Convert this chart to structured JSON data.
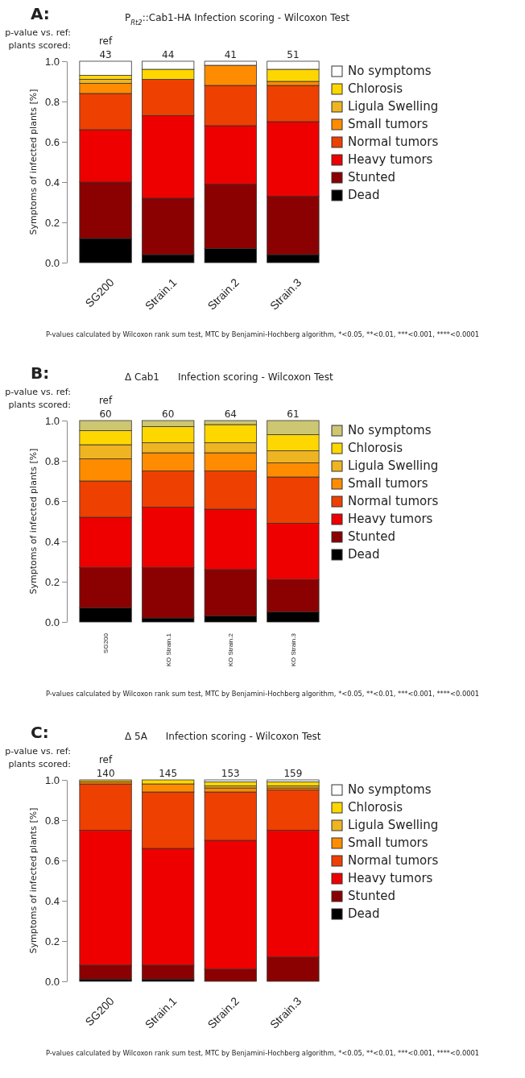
{
  "chart_data": [
    {
      "type": "bar",
      "stacked": true,
      "title": "P$_{Rt2}$::Cab1-HA Infection scoring - Wilcoxon Test",
      "ylabel": "Symptoms of infected plants [%]",
      "categories": [
        "SG200",
        "Strain.1",
        "Strain.2",
        "Strain.3"
      ],
      "ylim": [
        0,
        1
      ],
      "yticks": [
        {
          "value": 0,
          "label": "0.0"
        },
        {
          "value": 0.2,
          "label": "0.2"
        },
        {
          "value": 0.4,
          "label": "0.4"
        },
        {
          "value": 0.6,
          "label": "0.6"
        },
        {
          "value": 0.8,
          "label": "0.8"
        },
        {
          "value": 1,
          "label": "1.0"
        }
      ],
      "grid": false,
      "legend": "right",
      "series": [
        {
          "name": "Dead",
          "color": "#000000",
          "values": [
            0.12,
            0.04,
            0.07,
            0.04
          ]
        },
        {
          "name": "Stunted",
          "color": "#8b0000",
          "values": [
            0.28,
            0.28,
            0.32,
            0.29
          ]
        },
        {
          "name": "Heavy tumors",
          "color": "#ee0000",
          "values": [
            0.26,
            0.41,
            0.29,
            0.37
          ]
        },
        {
          "name": "Normal tumors",
          "color": "#ee4000",
          "values": [
            0.18,
            0.18,
            0.2,
            0.18
          ]
        },
        {
          "name": "Small tumors",
          "color": "#ff8c00",
          "values": [
            0.05,
            0,
            0.1,
            0.02
          ]
        },
        {
          "name": "Ligula Swelling",
          "color": "#eeb422",
          "values": [
            0.02,
            0,
            0,
            0
          ]
        },
        {
          "name": "Chlorosis",
          "color": "#ffd700",
          "values": [
            0.02,
            0.05,
            0,
            0.06
          ]
        },
        {
          "name": "No symptoms",
          "color": "#ffffff",
          "values": [
            0.07,
            0.04,
            0.02,
            0.04
          ]
        }
      ],
      "annotations": [
        "A:",
        "p-value vs. ref:",
        "plants scored:",
        "ref",
        "43",
        "44",
        "41",
        "51",
        "P-values calculated by Wilcoxon rank sum test, MTC by Benjamini-Hochberg algorithm, *<0.05, **<0.01, ***<0.001, ****<0.0001"
      ]
    },
    {
      "type": "bar",
      "stacked": true,
      "title": "Δ Cab1      Infection scoring - Wilcoxon Test",
      "ylabel": "Symptoms of infected plants [%]",
      "categories": [
        "SG200",
        "KO Strain.1",
        "KO Strain.2",
        "KO Strain.3"
      ],
      "ylim": [
        0,
        1
      ],
      "yticks": [
        {
          "value": 0,
          "label": "0.0"
        },
        {
          "value": 0.2,
          "label": "0.2"
        },
        {
          "value": 0.4,
          "label": "0.4"
        },
        {
          "value": 0.6,
          "label": "0.6"
        },
        {
          "value": 0.8,
          "label": "0.8"
        },
        {
          "value": 1,
          "label": "1.0"
        }
      ],
      "grid": false,
      "legend": "right",
      "series": [
        {
          "name": "Dead",
          "color": "#000000",
          "values": [
            0.07,
            0.02,
            0.03,
            0.05
          ]
        },
        {
          "name": "Stunted",
          "color": "#8b0000",
          "values": [
            0.2,
            0.25,
            0.23,
            0.16
          ]
        },
        {
          "name": "Heavy tumors",
          "color": "#ee0000",
          "values": [
            0.25,
            0.3,
            0.3,
            0.28
          ]
        },
        {
          "name": "Normal tumors",
          "color": "#ee4000",
          "values": [
            0.18,
            0.18,
            0.19,
            0.23
          ]
        },
        {
          "name": "Small tumors",
          "color": "#ff8c00",
          "values": [
            0.11,
            0.09,
            0.09,
            0.07
          ]
        },
        {
          "name": "Ligula Swelling",
          "color": "#eeb422",
          "values": [
            0.07,
            0.05,
            0.05,
            0.06
          ]
        },
        {
          "name": "Chlorosis",
          "color": "#ffd700",
          "values": [
            0.07,
            0.08,
            0.09,
            0.08
          ]
        },
        {
          "name": "No symptoms",
          "color": "#cdc673",
          "values": [
            0.05,
            0.03,
            0.02,
            0.07
          ]
        }
      ],
      "annotations": [
        "B:",
        "p-value vs. ref:",
        "plants scored:",
        "ref",
        "60",
        "60",
        "64",
        "61",
        "P-values calculated by Wilcoxon rank sum test, MTC by Benjamini-Hochberg algorithm, *<0.05, **<0.01, ***<0.001, ****<0.0001"
      ]
    },
    {
      "type": "bar",
      "stacked": true,
      "title": "Δ 5A      Infection scoring - Wilcoxon Test",
      "ylabel": "Symptoms of infected plants [%]",
      "categories": [
        "SG200",
        "Strain.1",
        "Strain.2",
        "Strain.3"
      ],
      "ylim": [
        0,
        1
      ],
      "yticks": [
        {
          "value": 0,
          "label": "0.0"
        },
        {
          "value": 0.2,
          "label": "0.2"
        },
        {
          "value": 0.4,
          "label": "0.4"
        },
        {
          "value": 0.6,
          "label": "0.6"
        },
        {
          "value": 0.8,
          "label": "0.8"
        },
        {
          "value": 1,
          "label": "1.0"
        }
      ],
      "grid": false,
      "legend": "right",
      "series": [
        {
          "name": "Dead",
          "color": "#000000",
          "values": [
            0.01,
            0.01,
            0,
            0
          ]
        },
        {
          "name": "Stunted",
          "color": "#8b0000",
          "values": [
            0.07,
            0.07,
            0.06,
            0.12
          ]
        },
        {
          "name": "Heavy tumors",
          "color": "#ee0000",
          "values": [
            0.67,
            0.58,
            0.64,
            0.63
          ]
        },
        {
          "name": "Normal tumors",
          "color": "#ee4000",
          "values": [
            0.23,
            0.28,
            0.24,
            0.2
          ]
        },
        {
          "name": "Small tumors",
          "color": "#ff8c00",
          "values": [
            0.01,
            0.04,
            0.02,
            0.01
          ]
        },
        {
          "name": "Ligula Swelling",
          "color": "#eeb422",
          "values": [
            0.01,
            0,
            0.01,
            0.01
          ]
        },
        {
          "name": "Chlorosis",
          "color": "#ffd700",
          "values": [
            0,
            0.02,
            0.02,
            0.02
          ]
        },
        {
          "name": "No symptoms",
          "color": "#ffffff",
          "values": [
            0,
            0,
            0.01,
            0.01
          ]
        }
      ],
      "annotations": [
        "C:",
        "p-value vs. ref:",
        "plants scored:",
        "ref",
        "140",
        "145",
        "153",
        "159",
        "P-values calculated by Wilcoxon rank sum test, MTC by Benjamini-Hochberg algorithm, *<0.05, **<0.01, ***<0.001, ****<0.0001"
      ]
    }
  ]
}
